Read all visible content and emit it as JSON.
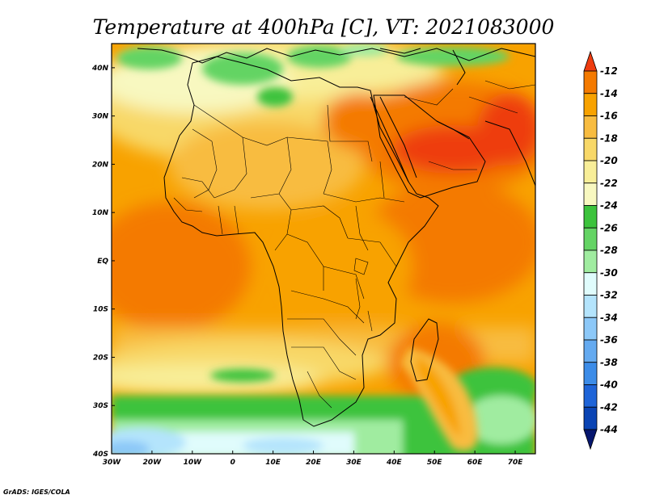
{
  "title": "Temperature at 400hPa [C], VT: 2021083000",
  "credit": "GrADS: IGES/COLA",
  "map": {
    "lon_range": [
      -30,
      75
    ],
    "lat_range": [
      -40,
      45
    ],
    "lon_ticks": [
      {
        "value": -30,
        "label": "30W"
      },
      {
        "value": -20,
        "label": "20W"
      },
      {
        "value": -10,
        "label": "10W"
      },
      {
        "value": 0,
        "label": "0"
      },
      {
        "value": 10,
        "label": "10E"
      },
      {
        "value": 20,
        "label": "20E"
      },
      {
        "value": 30,
        "label": "30E"
      },
      {
        "value": 40,
        "label": "40E"
      },
      {
        "value": 50,
        "label": "50E"
      },
      {
        "value": 60,
        "label": "60E"
      },
      {
        "value": 70,
        "label": "70E"
      }
    ],
    "lat_ticks": [
      {
        "value": 40,
        "label": "40N"
      },
      {
        "value": 30,
        "label": "30N"
      },
      {
        "value": 20,
        "label": "20N"
      },
      {
        "value": 10,
        "label": "10N"
      },
      {
        "value": 0,
        "label": "EQ"
      },
      {
        "value": -10,
        "label": "10S"
      },
      {
        "value": -20,
        "label": "20S"
      },
      {
        "value": -30,
        "label": "30S"
      },
      {
        "value": -40,
        "label": "40S"
      }
    ]
  },
  "colorbar": {
    "levels": [
      -12,
      -14,
      -16,
      -18,
      -20,
      -22,
      -24,
      -26,
      -28,
      -30,
      -32,
      -34,
      -36,
      -38,
      -40,
      -42,
      -44
    ],
    "colors": [
      "#ee3c10",
      "#f47a00",
      "#f8a200",
      "#f8bc40",
      "#f8d868",
      "#f8ee98",
      "#f8f8c0",
      "#3cc33c",
      "#64d464",
      "#a0eca0",
      "#e0fcfc",
      "#b4e4fc",
      "#8cc8f8",
      "#64aaf0",
      "#3c8ce8",
      "#1e64d8",
      "#0a44b4",
      "#06166e"
    ]
  }
}
